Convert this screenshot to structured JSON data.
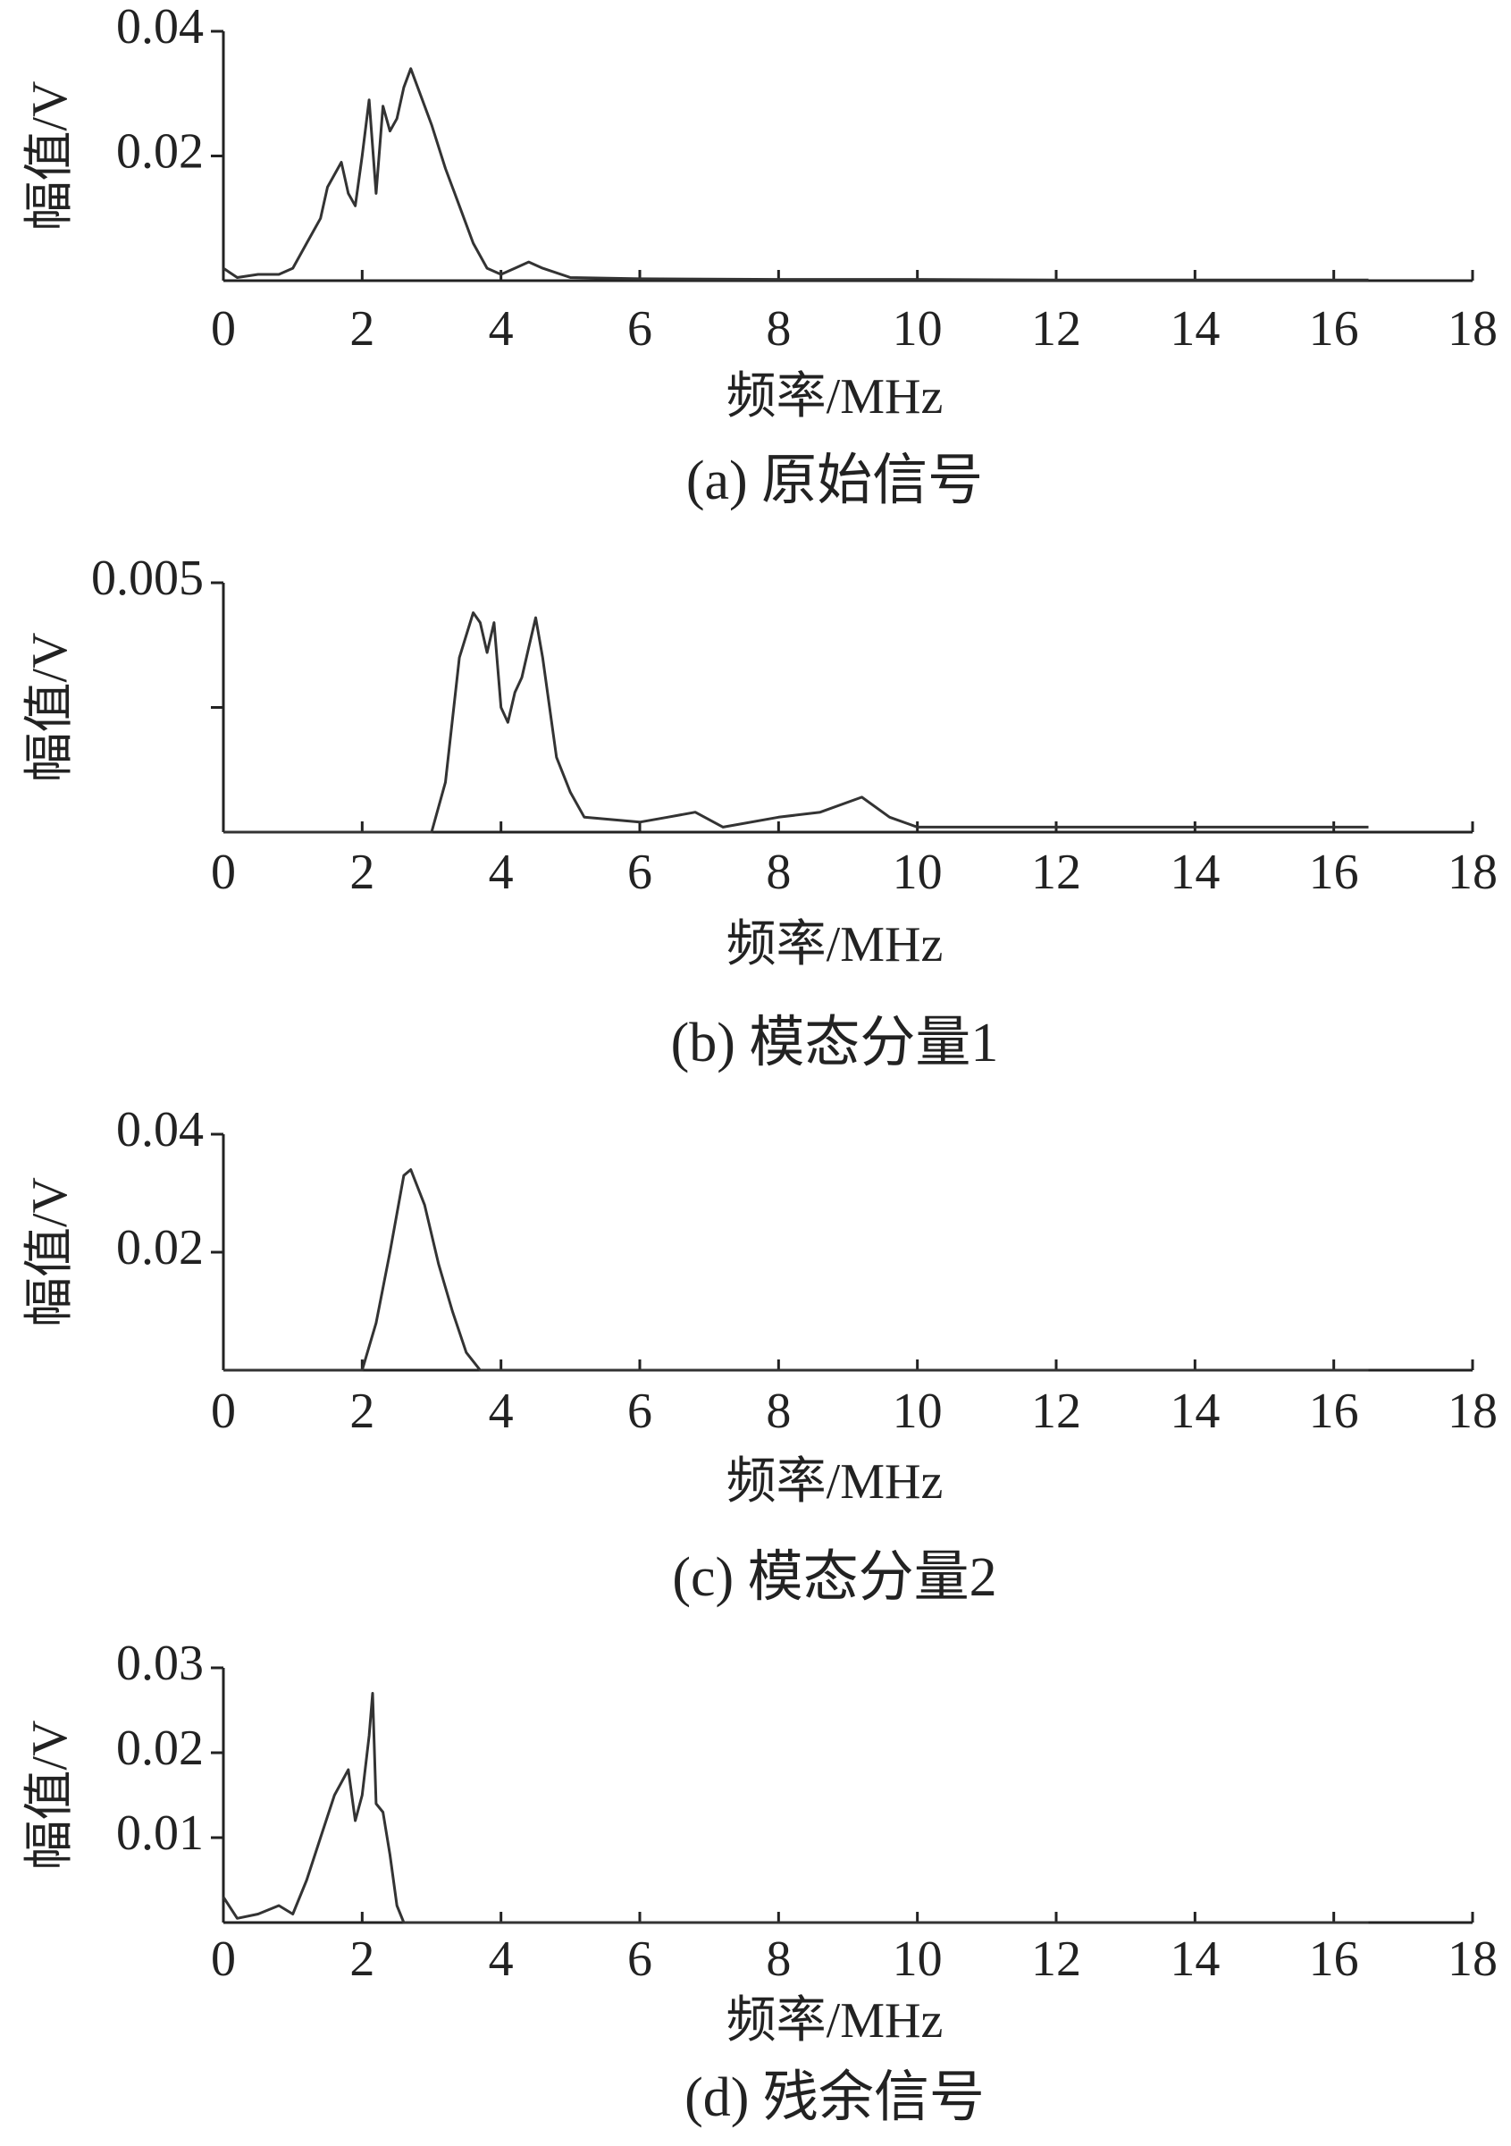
{
  "chart_data": [
    {
      "type": "line",
      "title": "(a)  原始信号",
      "x_label": "频率/MHz",
      "y_label": "幅值/V",
      "color": "#333333",
      "xlim": [
        0,
        18
      ],
      "xticks": [
        0,
        2,
        4,
        6,
        8,
        10,
        12,
        14,
        16,
        18
      ],
      "ylim": [
        0,
        0.04
      ],
      "yticks": [
        0.02,
        0.04
      ],
      "x": [
        0,
        0.2,
        0.5,
        0.8,
        1.0,
        1.2,
        1.4,
        1.5,
        1.7,
        1.8,
        1.9,
        2.0,
        2.1,
        2.2,
        2.3,
        2.4,
        2.5,
        2.6,
        2.7,
        2.8,
        3.0,
        3.2,
        3.4,
        3.6,
        3.8,
        4.0,
        4.2,
        4.4,
        4.6,
        5.0,
        6,
        8,
        10,
        12,
        14,
        16.5
      ],
      "values": [
        0.002,
        0.0005,
        0.001,
        0.001,
        0.002,
        0.006,
        0.01,
        0.015,
        0.019,
        0.014,
        0.012,
        0.02,
        0.029,
        0.014,
        0.028,
        0.024,
        0.026,
        0.031,
        0.034,
        0.031,
        0.025,
        0.018,
        0.012,
        0.006,
        0.002,
        0.001,
        0.002,
        0.003,
        0.002,
        0.0005,
        0.0003,
        0.0002,
        0.0002,
        0.0001,
        0.0001,
        0.0001
      ]
    },
    {
      "type": "line",
      "title": "(b)  模态分量1",
      "x_label": "频率/MHz",
      "y_label": "幅值/V",
      "color": "#333333",
      "xlim": [
        0,
        18
      ],
      "xticks": [
        0,
        2,
        4,
        6,
        8,
        10,
        12,
        14,
        16,
        18
      ],
      "ylim": [
        0,
        0.005
      ],
      "yticks": [
        {
          "value": 0.0025,
          "label": null
        },
        0.005
      ],
      "x": [
        0,
        3.0,
        3.2,
        3.4,
        3.6,
        3.7,
        3.8,
        3.9,
        4.0,
        4.1,
        4.2,
        4.3,
        4.4,
        4.5,
        4.6,
        4.8,
        5.0,
        5.2,
        6,
        6.4,
        6.8,
        7.2,
        8,
        8.6,
        9.2,
        9.6,
        10,
        12,
        14,
        16.5
      ],
      "values": [
        0,
        0,
        0.001,
        0.0035,
        0.0044,
        0.0042,
        0.0036,
        0.0042,
        0.0025,
        0.0022,
        0.0028,
        0.0031,
        0.0037,
        0.0043,
        0.0035,
        0.0015,
        0.0008,
        0.0003,
        0.0002,
        0.0003,
        0.0004,
        0.0001,
        0.0003,
        0.0004,
        0.0007,
        0.0003,
        0.0001,
        0.0001,
        0.0001,
        0.0001
      ]
    },
    {
      "type": "line",
      "title": "(c)  模态分量2",
      "x_label": "频率/MHz",
      "y_label": "幅值/V",
      "color": "#333333",
      "xlim": [
        0,
        18
      ],
      "xticks": [
        0,
        2,
        4,
        6,
        8,
        10,
        12,
        14,
        16,
        18
      ],
      "ylim": [
        0,
        0.04
      ],
      "yticks": [
        0.02,
        0.04
      ],
      "x": [
        0,
        2.0,
        2.2,
        2.4,
        2.6,
        2.7,
        2.9,
        3.1,
        3.3,
        3.5,
        3.7,
        10,
        16.5
      ],
      "values": [
        0,
        0,
        0.008,
        0.02,
        0.033,
        0.034,
        0.028,
        0.018,
        0.01,
        0.003,
        0,
        0,
        0
      ]
    },
    {
      "type": "line",
      "title": "(d)  残余信号",
      "x_label": "频率/MHz",
      "y_label": "幅值/V",
      "color": "#333333",
      "xlim": [
        0,
        18
      ],
      "xticks": [
        0,
        2,
        4,
        6,
        8,
        10,
        12,
        14,
        16,
        18
      ],
      "ylim": [
        0,
        0.03
      ],
      "yticks": [
        0.01,
        0.02,
        0.03
      ],
      "x": [
        0,
        0.2,
        0.5,
        0.8,
        1.0,
        1.2,
        1.4,
        1.6,
        1.8,
        1.9,
        2.0,
        2.1,
        2.15,
        2.2,
        2.3,
        2.4,
        2.5,
        2.6,
        10,
        16.5
      ],
      "values": [
        0.003,
        0.0005,
        0.001,
        0.002,
        0.001,
        0.005,
        0.01,
        0.015,
        0.018,
        0.012,
        0.015,
        0.022,
        0.027,
        0.014,
        0.013,
        0.008,
        0.002,
        0,
        0,
        0
      ]
    }
  ]
}
